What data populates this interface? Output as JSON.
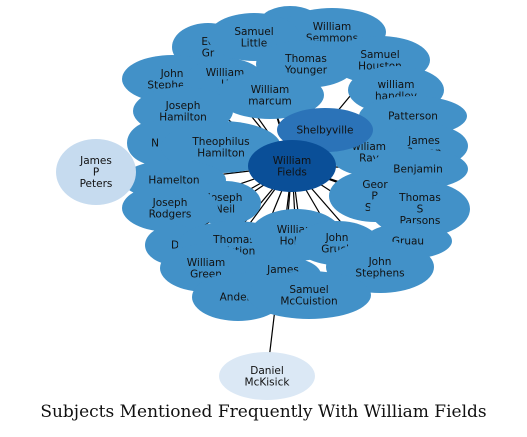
{
  "title": "Subjects Mentioned Frequently With William Fields",
  "colors": {
    "center": "#0a4f98",
    "second": "#2b73b8",
    "ring": "#4291c8",
    "pale": "#c6dbef",
    "paler": "#dbe8f5",
    "edge": "#000000"
  },
  "center_node": {
    "id": "fields",
    "lines": [
      "William",
      "Fields"
    ]
  },
  "nodes": [
    {
      "id": "top_small",
      "lines": [
        ""
      ],
      "tier": "ring"
    },
    {
      "id": "semmons",
      "lines": [
        "William",
        "Semmons"
      ],
      "tier": "ring"
    },
    {
      "id": "eg",
      "lines": [
        "Ed",
        "Gr"
      ],
      "tier": "ring"
    },
    {
      "id": "slittle",
      "lines": [
        "Samuel",
        "Little"
      ],
      "tier": "ring"
    },
    {
      "id": "houston",
      "lines": [
        "Samuel",
        "Houston"
      ],
      "tier": "ring"
    },
    {
      "id": "tyounger",
      "lines": [
        "Thomas",
        "Younger"
      ],
      "tier": "ring"
    },
    {
      "id": "jsteph",
      "lines": [
        "John",
        "Stephens"
      ],
      "tier": "ring"
    },
    {
      "id": "which",
      "lines": [
        "William",
        "H",
        "hic"
      ],
      "tier": "ring"
    },
    {
      "id": "whandley",
      "lines": [
        "william",
        "handley"
      ],
      "tier": "ring"
    },
    {
      "id": "wmarcum",
      "lines": [
        "William",
        "marcum"
      ],
      "tier": "ring"
    },
    {
      "id": "jhamilton",
      "lines": [
        "Joseph",
        "Hamilton"
      ],
      "tier": "ring"
    },
    {
      "id": "patterson",
      "lines": [
        "Patterson"
      ],
      "tier": "ring"
    },
    {
      "id": "jparson",
      "lines": [
        "James",
        "Parson"
      ],
      "tier": "ring"
    },
    {
      "id": "nl",
      "lines": [
        "N"
      ],
      "tier": "ring"
    },
    {
      "id": "thamilton",
      "lines": [
        "Theophilus",
        "Hamilton"
      ],
      "tier": "ring"
    },
    {
      "id": "wray",
      "lines": [
        "wiliam",
        "Ray"
      ],
      "tier": "ring"
    },
    {
      "id": "benjamin",
      "lines": [
        "Benjamin"
      ],
      "tier": "ring"
    },
    {
      "id": "hamelton",
      "lines": [
        "Hamelton"
      ],
      "tier": "ring"
    },
    {
      "id": "gslar",
      "lines": [
        "Geor",
        "B",
        "Slar"
      ],
      "tier": "ring"
    },
    {
      "id": "tsparsons",
      "lines": [
        "Thomas",
        "S",
        "Parsons"
      ],
      "tier": "ring"
    },
    {
      "id": "jneil",
      "lines": [
        "Joseph",
        "Neil"
      ],
      "tier": "ring"
    },
    {
      "id": "jrodgers",
      "lines": [
        "Joseph",
        "Rodgers"
      ],
      "tier": "ring"
    },
    {
      "id": "dg",
      "lines": [
        "D"
      ],
      "tier": "ring"
    },
    {
      "id": "tcuistion",
      "lines": [
        "Thomas",
        "Cuistion"
      ],
      "tier": "ring"
    },
    {
      "id": "wholley",
      "lines": [
        "William",
        "Holley"
      ],
      "tier": "ring"
    },
    {
      "id": "jgruch",
      "lines": [
        "John",
        "Gruch"
      ],
      "tier": "ring"
    },
    {
      "id": "rh",
      "lines": [
        "Gruau"
      ],
      "tier": "ring"
    },
    {
      "id": "jstephens2",
      "lines": [
        "John",
        "Stephens"
      ],
      "tier": "ring"
    },
    {
      "id": "wgreen",
      "lines": [
        "William",
        "Green"
      ],
      "tier": "ring"
    },
    {
      "id": "jamesm",
      "lines": [
        "James",
        "M"
      ],
      "tier": "ring"
    },
    {
      "id": "anders",
      "lines": [
        "Anders"
      ],
      "tier": "ring"
    },
    {
      "id": "smccuistion",
      "lines": [
        "Samuel",
        "McCuistion"
      ],
      "tier": "ring"
    },
    {
      "id": "shelbyville",
      "lines": [
        "Shelbyville"
      ],
      "tier": "second"
    },
    {
      "id": "jppeters",
      "lines": [
        "James",
        "P",
        "Peters"
      ],
      "tier": "pale"
    },
    {
      "id": "dmckisick",
      "lines": [
        "Daniel",
        "McKisick"
      ],
      "tier": "paler"
    }
  ]
}
